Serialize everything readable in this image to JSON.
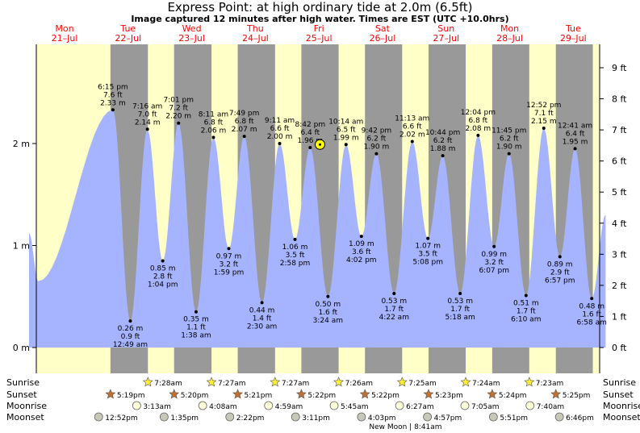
{
  "header": {
    "title": "Express Point: at high  ordinary tide at 2.0m (6.5ft)",
    "subtitle": "Image captured 12 minutes after high water. Times are EST (UTC +10.0hrs)"
  },
  "days": [
    {
      "name": "Mon",
      "date": "21–Jul"
    },
    {
      "name": "Tue",
      "date": "22–Jul"
    },
    {
      "name": "Wed",
      "date": "23–Jul"
    },
    {
      "name": "Thu",
      "date": "24–Jul"
    },
    {
      "name": "Fri",
      "date": "25–Jul"
    },
    {
      "name": "Sat",
      "date": "26–Jul"
    },
    {
      "name": "Sun",
      "date": "27–Jul"
    },
    {
      "name": "Mon",
      "date": "28–Jul"
    },
    {
      "name": "Tue",
      "date": "29–Jul"
    }
  ],
  "colors": {
    "day": "#ffffc8",
    "night": "#999999",
    "water": "#a6b4ff",
    "now_marker": "#ffff00"
  },
  "chart_data": {
    "type": "area",
    "title": "Express Point: at high  ordinary tide at 2.0m (6.5ft)",
    "ylabel_left_unit": "m",
    "ylabel_right_unit": "ft",
    "left_ticks": [
      "0 m",
      "1 m",
      "2 m"
    ],
    "right_ticks": [
      "0 ft",
      "1 ft",
      "2 ft",
      "3 ft",
      "4 ft",
      "5 ft",
      "6 ft",
      "7 ft",
      "8 ft",
      "9 ft"
    ],
    "ylim_m": [
      0,
      2.9
    ],
    "x_unit": "hours from 21-Jul 00:00",
    "xlim_hours": [
      -16,
      214
    ],
    "now_hours": 96.4,
    "now_label": "now",
    "tides": [
      {
        "type": "high",
        "day": 0,
        "time": "6:15 pm",
        "ft": "7.6 ft",
        "m": 2.33
      },
      {
        "type": "low",
        "day": 1,
        "time": "12:49 am",
        "ft": "0.9 ft",
        "m": 0.26
      },
      {
        "type": "high",
        "day": 1,
        "time": "7:16 am",
        "ft": "7.0 ft",
        "m": 2.14
      },
      {
        "type": "low",
        "day": 1,
        "time": "1:04 pm",
        "ft": "2.8 ft",
        "m": 0.85
      },
      {
        "type": "high",
        "day": 1,
        "time": "7:01 pm",
        "ft": "7.2 ft",
        "m": 2.2
      },
      {
        "type": "low",
        "day": 2,
        "time": "1:38 am",
        "ft": "1.1 ft",
        "m": 0.35
      },
      {
        "type": "high",
        "day": 2,
        "time": "8:11 am",
        "ft": "6.8 ft",
        "m": 2.06
      },
      {
        "type": "low",
        "day": 2,
        "time": "1:59 pm",
        "ft": "3.2 ft",
        "m": 0.97
      },
      {
        "type": "high",
        "day": 2,
        "time": "7:49 pm",
        "ft": "6.8 ft",
        "m": 2.07
      },
      {
        "type": "low",
        "day": 3,
        "time": "2:30 am",
        "ft": "1.4 ft",
        "m": 0.44
      },
      {
        "type": "high",
        "day": 3,
        "time": "9:11 am",
        "ft": "6.6 ft",
        "m": 2.0
      },
      {
        "type": "low",
        "day": 3,
        "time": "2:58 pm",
        "ft": "3.5 ft",
        "m": 1.06
      },
      {
        "type": "high",
        "day": 3,
        "time": "8:42 pm",
        "ft": "6.4 ft",
        "m": 1.96
      },
      {
        "type": "low",
        "day": 4,
        "time": "3:24 am",
        "ft": "1.6 ft",
        "m": 0.5
      },
      {
        "type": "high",
        "day": 4,
        "time": "10:14 am",
        "ft": "6.5 ft",
        "m": 1.99
      },
      {
        "type": "low",
        "day": 4,
        "time": "4:02 pm",
        "ft": "3.6 ft",
        "m": 1.09
      },
      {
        "type": "high",
        "day": 4,
        "time": "9:42 pm",
        "ft": "6.2 ft",
        "m": 1.9
      },
      {
        "type": "low",
        "day": 5,
        "time": "4:22 am",
        "ft": "1.7 ft",
        "m": 0.53
      },
      {
        "type": "high",
        "day": 5,
        "time": "11:13 am",
        "ft": "6.6 ft",
        "m": 2.02
      },
      {
        "type": "low",
        "day": 5,
        "time": "5:08 pm",
        "ft": "3.5 ft",
        "m": 1.07
      },
      {
        "type": "high",
        "day": 5,
        "time": "10:44 pm",
        "ft": "6.2 ft",
        "m": 1.88
      },
      {
        "type": "low",
        "day": 6,
        "time": "5:18 am",
        "ft": "1.7 ft",
        "m": 0.53
      },
      {
        "type": "high",
        "day": 6,
        "time": "12:04 pm",
        "ft": "6.8 ft",
        "m": 2.08
      },
      {
        "type": "low",
        "day": 6,
        "time": "6:07 pm",
        "ft": "3.2 ft",
        "m": 0.99
      },
      {
        "type": "high",
        "day": 6,
        "time": "11:45 pm",
        "ft": "6.2 ft",
        "m": 1.9
      },
      {
        "type": "low",
        "day": 7,
        "time": "6:10 am",
        "ft": "1.7 ft",
        "m": 0.51
      },
      {
        "type": "high",
        "day": 7,
        "time": "12:52 pm",
        "ft": "7.1 ft",
        "m": 2.15
      },
      {
        "type": "low",
        "day": 7,
        "time": "6:57 pm",
        "ft": "2.9 ft",
        "m": 0.89
      },
      {
        "type": "high",
        "day": 8,
        "time": "12:41 am",
        "ft": "6.4 ft",
        "m": 1.95
      },
      {
        "type": "low",
        "day": 8,
        "time": "6:58 am",
        "ft": "1.6 ft",
        "m": 0.48
      }
    ],
    "sunrise": [
      {
        "day": 1,
        "time": "7:28am"
      },
      {
        "day": 2,
        "time": "7:27am"
      },
      {
        "day": 3,
        "time": "7:27am"
      },
      {
        "day": 4,
        "time": "7:26am"
      },
      {
        "day": 5,
        "time": "7:25am"
      },
      {
        "day": 6,
        "time": "7:24am"
      },
      {
        "day": 7,
        "time": "7:23am"
      }
    ],
    "sunset": [
      {
        "day": 0,
        "time": "5:19pm"
      },
      {
        "day": 1,
        "time": "5:20pm"
      },
      {
        "day": 2,
        "time": "5:21pm"
      },
      {
        "day": 3,
        "time": "5:22pm"
      },
      {
        "day": 4,
        "time": "5:22pm"
      },
      {
        "day": 5,
        "time": "5:23pm"
      },
      {
        "day": 6,
        "time": "5:24pm"
      },
      {
        "day": 7,
        "time": "5:25pm"
      }
    ],
    "moonrise": [
      {
        "day": 1,
        "time": "3:13am"
      },
      {
        "day": 2,
        "time": "4:08am"
      },
      {
        "day": 3,
        "time": "4:59am"
      },
      {
        "day": 4,
        "time": "5:45am"
      },
      {
        "day": 5,
        "time": "6:27am"
      },
      {
        "day": 6,
        "time": "7:05am"
      },
      {
        "day": 7,
        "time": "7:40am"
      }
    ],
    "moonset": [
      {
        "day": 0,
        "time": "12:52pm"
      },
      {
        "day": 1,
        "time": "1:35pm"
      },
      {
        "day": 2,
        "time": "2:22pm"
      },
      {
        "day": 3,
        "time": "3:11pm"
      },
      {
        "day": 4,
        "time": "4:03pm"
      },
      {
        "day": 5,
        "time": "4:57pm"
      },
      {
        "day": 6,
        "time": "5:51pm"
      },
      {
        "day": 7,
        "time": "6:46pm"
      }
    ],
    "row_labels": {
      "sunrise": "Sunrise",
      "sunset": "Sunset",
      "moonrise": "Moonrise",
      "moonset": "Moonset"
    },
    "new_moon": "New Moon | 8:41am"
  }
}
